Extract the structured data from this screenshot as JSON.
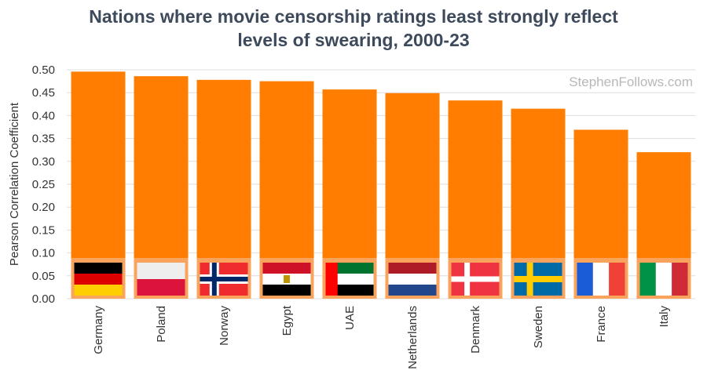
{
  "chart_data": {
    "type": "bar",
    "title_lines": [
      "Nations where movie censorship ratings least strongly reflect",
      "levels of swearing, 2000-23"
    ],
    "ylabel": "Pearson Correlation Coefficient",
    "xlabel": "",
    "watermark": "StephenFollows.com",
    "categories": [
      "Germany",
      "Poland",
      "Norway",
      "Egypt",
      "UAE",
      "Netherlands",
      "Denmark",
      "Sweden",
      "France",
      "Italy"
    ],
    "values": [
      0.496,
      0.486,
      0.478,
      0.475,
      0.457,
      0.449,
      0.433,
      0.415,
      0.369,
      0.32
    ],
    "flags": [
      "germany-flag",
      "poland-flag",
      "norway-flag",
      "egypt-flag",
      "uae-flag",
      "netherlands-flag",
      "denmark-flag",
      "sweden-flag",
      "france-flag",
      "italy-flag"
    ],
    "ylim": [
      0,
      0.5
    ],
    "yticks": [
      "0.00",
      "0.05",
      "0.10",
      "0.15",
      "0.20",
      "0.25",
      "0.30",
      "0.35",
      "0.40",
      "0.45",
      "0.50"
    ],
    "grid": true,
    "legend": "none",
    "colors": {
      "bar": "#ff7d00",
      "flag_band": "#f9a35c",
      "title": "#3d4a5c",
      "grid": "#dddddd"
    }
  }
}
